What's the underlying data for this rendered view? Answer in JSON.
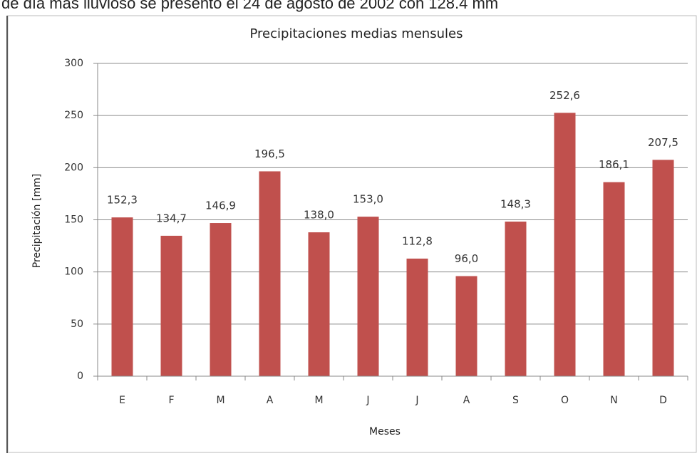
{
  "caption": "de día más lluvioso se presentó el 24 de agosto de 2002 con 128.4 mm",
  "chart_data": {
    "type": "bar",
    "title": "Precipitaciones medias mensules",
    "x_label": "Meses",
    "y_label": "Precipitación [mm]",
    "categories": [
      "E",
      "F",
      "M",
      "A",
      "M",
      "J",
      "J",
      "A",
      "S",
      "O",
      "N",
      "D"
    ],
    "values": [
      152.3,
      134.7,
      146.9,
      196.5,
      138.0,
      153.0,
      112.8,
      96.0,
      148.3,
      252.6,
      186.1,
      207.5
    ],
    "value_labels": [
      "152,3",
      "134,7",
      "146,9",
      "196,5",
      "138,0",
      "153,0",
      "112,8",
      "96,0",
      "148,3",
      "252,6",
      "186,1",
      "207,5"
    ],
    "color": "#c0504d",
    "ylim": [
      0,
      300
    ],
    "yticks": [
      0,
      50,
      100,
      150,
      200,
      250,
      300
    ],
    "grid": true
  }
}
